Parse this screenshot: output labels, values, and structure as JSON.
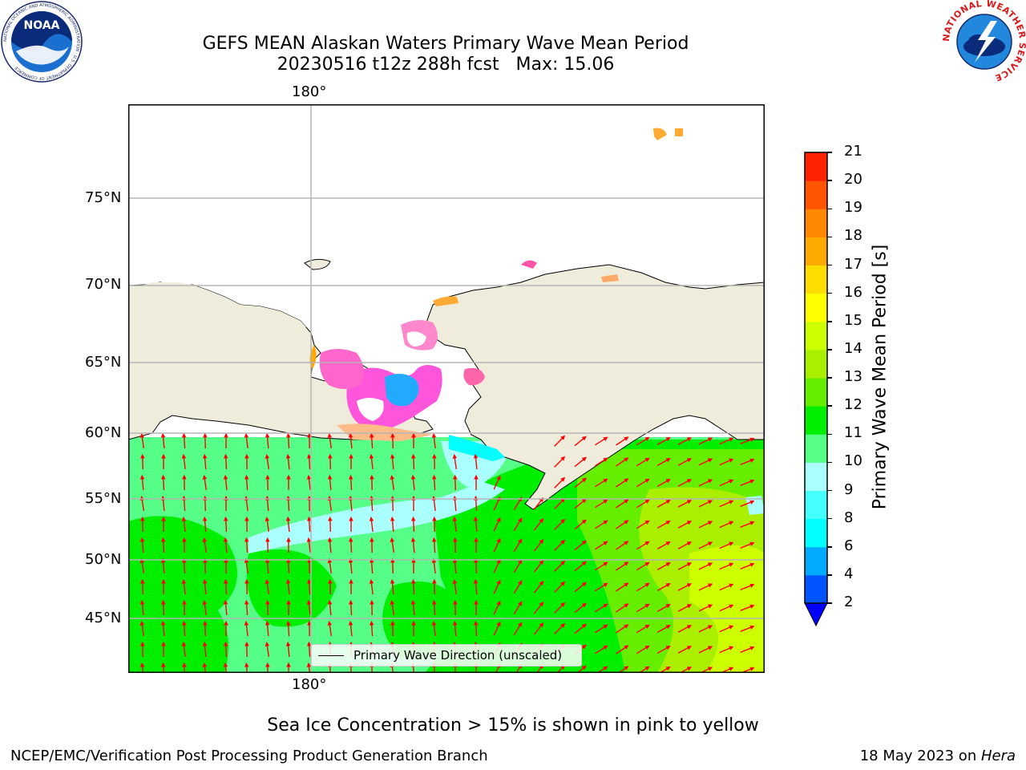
{
  "title": {
    "line1": "GEFS MEAN Alaskan Waters Primary Wave Mean Period",
    "line2": "20230516 t12z 288h fcst   Max: 15.06"
  },
  "logos": {
    "left": {
      "name": "NOAA",
      "ring_text": "NATIONAL OCEANIC AND ATMOSPHERIC ADMINISTRATION · U.S. DEPARTMENT OF COMMERCE",
      "icon": "noaa-logo-icon"
    },
    "right": {
      "ring_text": "NATIONAL WEATHER SERVICE",
      "icon": "nws-logo-icon"
    }
  },
  "map": {
    "lon_top_label": "180°",
    "lon_bottom_label": "180°",
    "lat_labels": [
      "75°N",
      "70°N",
      "65°N",
      "60°N",
      "55°N",
      "50°N",
      "45°N"
    ],
    "legend_label": "Primary Wave Direction (unscaled)",
    "colors": {
      "land": "#efecdc",
      "arrow": "#ff0000",
      "grid": "#b5b5b5",
      "coast": "#000000"
    }
  },
  "colorbar": {
    "title": "Primary Wave Mean Period [s]",
    "tick_labels": [
      "2",
      "4",
      "6",
      "8",
      "9",
      "10",
      "11",
      "12",
      "13",
      "14",
      "15",
      "16",
      "17",
      "18",
      "19",
      "20",
      "21"
    ],
    "colors": [
      "#0055ff",
      "#00aaff",
      "#00ffff",
      "#44ffff",
      "#aaffff",
      "#55ff88",
      "#00ee00",
      "#66ee00",
      "#aaee00",
      "#ccff00",
      "#ffff00",
      "#ffdd00",
      "#ffaa00",
      "#ff8800",
      "#ff5500",
      "#ff2200",
      "#ff0000"
    ],
    "extend_color": "#0000ff"
  },
  "footer": {
    "note": "Sea Ice Concentration > 15% is shown in pink to yellow",
    "left": "NCEP/EMC/Verification Post Processing Product Generation Branch",
    "right_date": "18 May 2023 on ",
    "right_host": "Hera"
  }
}
